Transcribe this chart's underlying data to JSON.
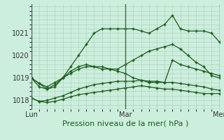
{
  "xlabel": "Pression niveau de la mer( hPa )",
  "background_color": "#cceedd",
  "grid_color": "#aaccbb",
  "line_color": "#1a5c1a",
  "ylim": [
    1017.6,
    1022.3
  ],
  "yticks": [
    1018,
    1019,
    1020,
    1021
  ],
  "xtick_labels": [
    "Lun",
    "Mar",
    "Mer"
  ],
  "xtick_positions": [
    0,
    12,
    24
  ],
  "xlabel_fontsize": 8,
  "tick_fontsize": 7,
  "series": [
    [
      1019.0,
      1018.75,
      1018.5,
      1018.6,
      1019.0,
      1019.5,
      1020.0,
      1020.5,
      1021.0,
      1021.2,
      1021.2,
      1021.2,
      1021.2,
      1021.2,
      1021.1,
      1021.0,
      1021.2,
      1021.4,
      1021.8,
      1021.2,
      1021.1,
      1021.1,
      1021.1,
      1021.0,
      1020.6
    ],
    [
      1019.0,
      1018.75,
      1018.6,
      1018.8,
      1019.0,
      1019.2,
      1019.4,
      1019.5,
      1019.5,
      1019.4,
      1019.4,
      1019.4,
      1019.6,
      1019.8,
      1020.0,
      1020.2,
      1020.3,
      1020.4,
      1020.5,
      1020.3,
      1020.0,
      1019.7,
      1019.5,
      1019.1,
      1019.0
    ],
    [
      1019.0,
      1018.6,
      1018.5,
      1018.7,
      1019.0,
      1019.3,
      1019.5,
      1019.6,
      1019.5,
      1019.5,
      1019.4,
      1019.3,
      1019.2,
      1019.0,
      1018.9,
      1018.8,
      1018.8,
      1018.8,
      1019.8,
      1019.6,
      1019.5,
      1019.4,
      1019.3,
      1019.2,
      1019.1
    ],
    [
      1018.1,
      1017.95,
      1018.0,
      1018.1,
      1018.2,
      1018.35,
      1018.5,
      1018.6,
      1018.7,
      1018.75,
      1018.8,
      1018.85,
      1018.85,
      1018.85,
      1018.9,
      1018.85,
      1018.85,
      1018.8,
      1018.8,
      1018.75,
      1018.7,
      1018.65,
      1018.6,
      1018.5,
      1018.45
    ],
    [
      1018.1,
      1017.95,
      1017.9,
      1017.95,
      1018.05,
      1018.15,
      1018.25,
      1018.3,
      1018.35,
      1018.4,
      1018.45,
      1018.5,
      1018.55,
      1018.6,
      1018.65,
      1018.6,
      1018.55,
      1018.5,
      1018.5,
      1018.45,
      1018.4,
      1018.35,
      1018.3,
      1018.3,
      1018.3
    ]
  ]
}
